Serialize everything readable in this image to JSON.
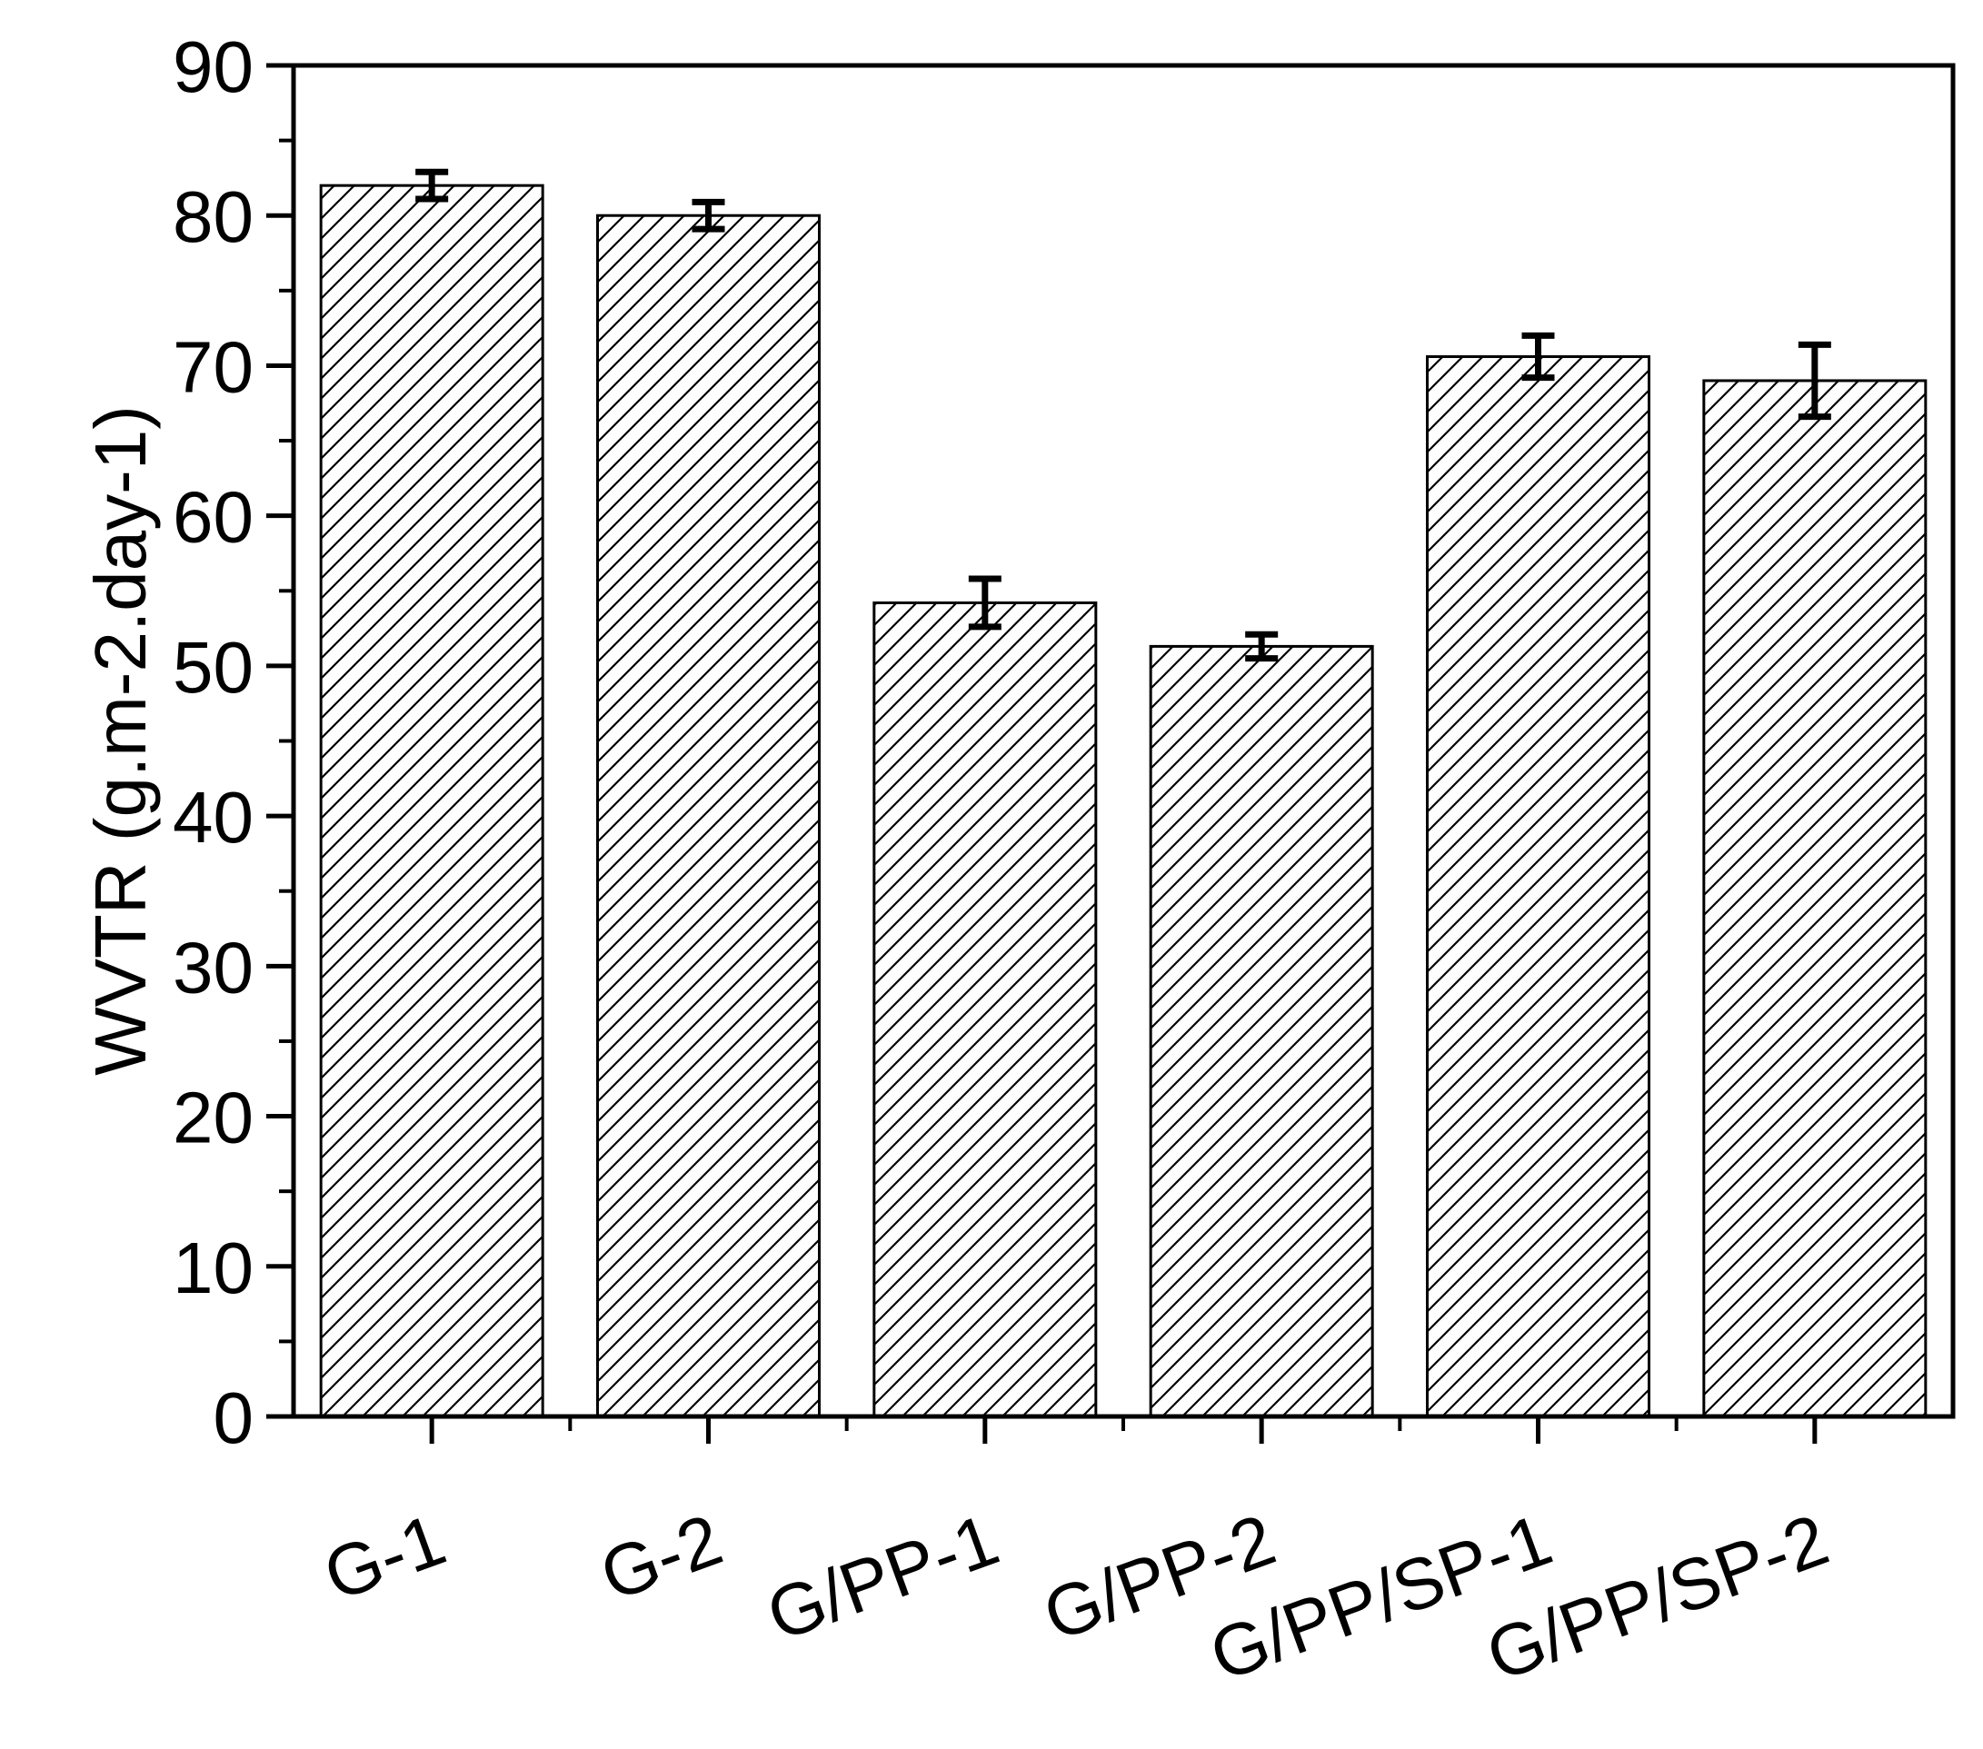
{
  "chart_data": {
    "type": "bar",
    "title": "",
    "xlabel": "",
    "ylabel": "WVTR (g.m-2.day-1)",
    "ylim": [
      0,
      90
    ],
    "yticks": [
      0,
      10,
      20,
      30,
      40,
      50,
      60,
      70,
      80,
      90
    ],
    "grid": false,
    "legend": "none",
    "fill_pattern": "diagonal-hatch",
    "colors": {
      "bar_fill": "#ffffff",
      "bar_stroke": "#000000",
      "hatch": "#000000",
      "axis": "#000000",
      "error_bar": "#000000"
    },
    "categories": [
      "G-1",
      "G-2",
      "G/PP-1",
      "G/PP-2",
      "G/PP/SP-1",
      "G/PP/SP-2"
    ],
    "values": [
      82,
      80,
      54.2,
      51.3,
      70.6,
      69
    ],
    "errors": [
      0.9,
      0.9,
      1.6,
      0.8,
      1.4,
      2.4
    ]
  }
}
